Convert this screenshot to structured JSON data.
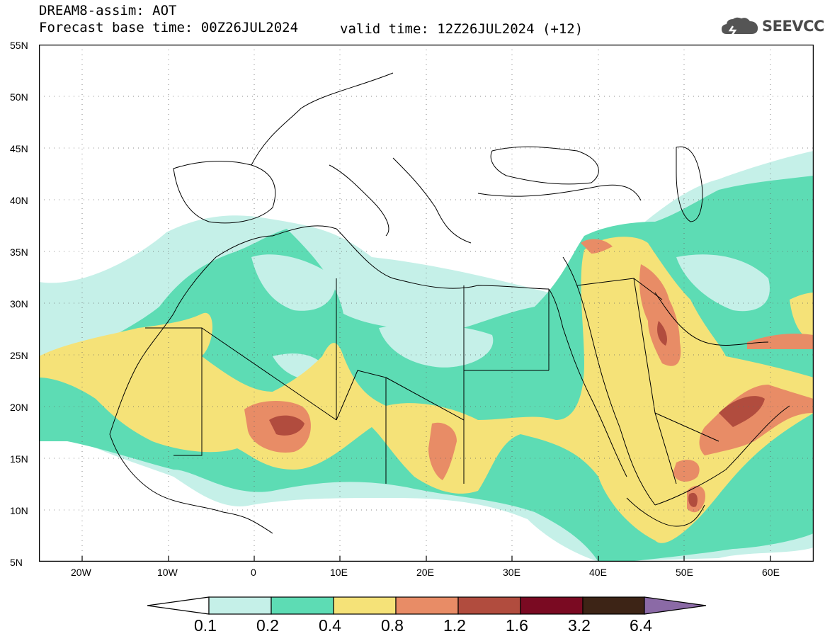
{
  "header": {
    "title": "DREAM8-assim: AOT",
    "base_time": "Forecast base time: 00Z26JUL2024",
    "valid_time": "valid time: 12Z26JUL2024 (+12)"
  },
  "logo": {
    "text": "SEEVCCC",
    "icon": "cloud-icon"
  },
  "map": {
    "lat_labels": [
      "55N",
      "50N",
      "45N",
      "40N",
      "35N",
      "30N",
      "25N",
      "20N",
      "15N",
      "10N",
      "5N"
    ],
    "lon_labels": [
      "20W",
      "10W",
      "0",
      "10E",
      "20E",
      "30E",
      "40E",
      "50E",
      "60E"
    ],
    "lon_range": [
      -25,
      65
    ],
    "lat_range": [
      5,
      55
    ],
    "grid": "dotted",
    "variable": "AOT"
  },
  "colorbar": {
    "labels": [
      "0.1",
      "0.2",
      "0.4",
      "0.8",
      "1.2",
      "1.6",
      "3.2",
      "6.4"
    ],
    "colors": [
      "#ffffff",
      "#c5f0e8",
      "#5ddcb4",
      "#f5e278",
      "#e88c66",
      "#b14c3e",
      "#7a0a22",
      "#3d2416",
      "#8b6aa6"
    ]
  }
}
